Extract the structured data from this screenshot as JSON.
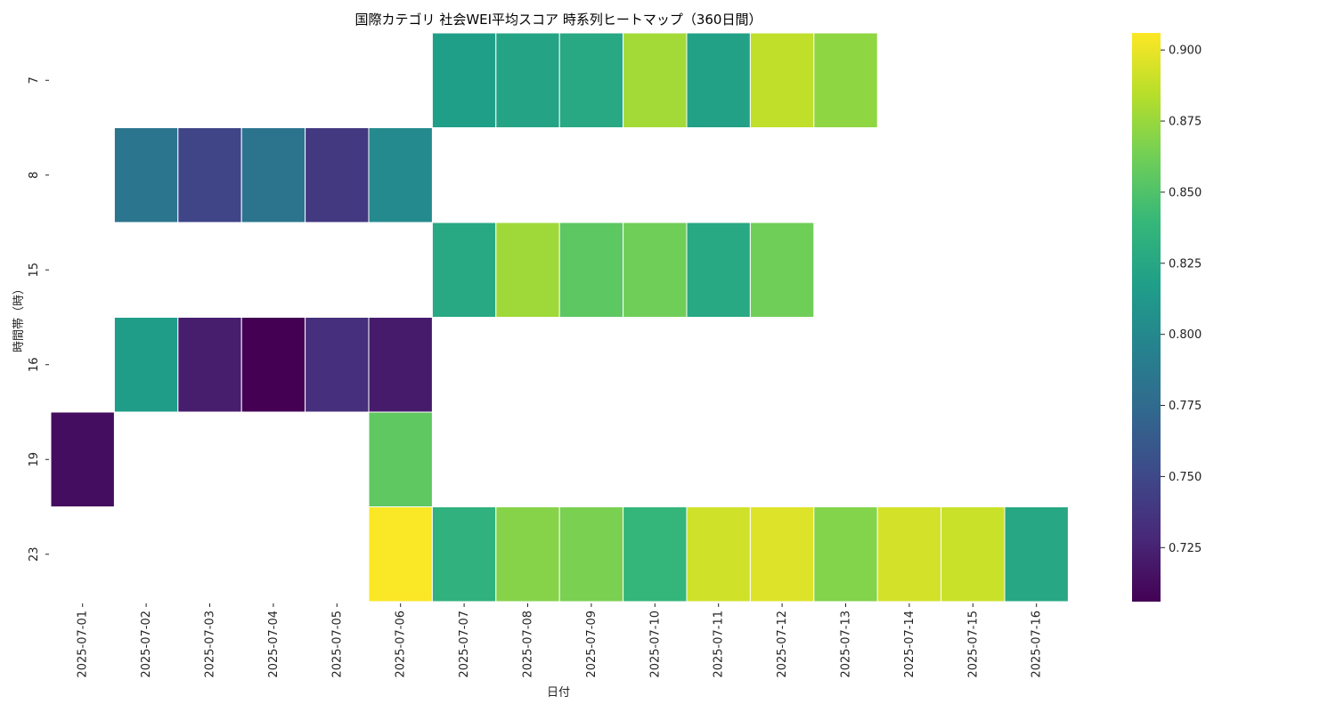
{
  "chart_data": {
    "type": "heatmap",
    "title": "国際カテゴリ 社会WEI平均スコア 時系列ヒートマップ（360日間）",
    "xlabel": "日付",
    "ylabel": "時間帯（時）",
    "x": [
      "2025-07-01",
      "2025-07-02",
      "2025-07-03",
      "2025-07-04",
      "2025-07-05",
      "2025-07-06",
      "2025-07-07",
      "2025-07-08",
      "2025-07-09",
      "2025-07-10",
      "2025-07-11",
      "2025-07-12",
      "2025-07-13",
      "2025-07-14",
      "2025-07-15",
      "2025-07-16"
    ],
    "y": [
      "7",
      "8",
      "15",
      "16",
      "19",
      "23"
    ],
    "values": [
      [
        null,
        null,
        null,
        null,
        null,
        null,
        0.818,
        0.822,
        0.826,
        0.878,
        0.82,
        0.887,
        0.872,
        null,
        null,
        null
      ],
      [
        null,
        0.784,
        0.748,
        0.783,
        0.74,
        0.801,
        null,
        null,
        null,
        null,
        null,
        null,
        null,
        null,
        null,
        null
      ],
      [
        null,
        null,
        null,
        null,
        null,
        null,
        0.826,
        0.877,
        0.855,
        0.862,
        0.826,
        0.862,
        null,
        null,
        null,
        null
      ],
      [
        null,
        0.816,
        0.722,
        0.705,
        0.733,
        0.721,
        null,
        null,
        null,
        null,
        null,
        null,
        null,
        null,
        null,
        null
      ],
      [
        0.713,
        null,
        null,
        null,
        null,
        0.856,
        null,
        null,
        null,
        null,
        null,
        null,
        null,
        null,
        null,
        null
      ],
      [
        null,
        null,
        null,
        null,
        null,
        0.905,
        0.834,
        0.869,
        0.865,
        0.838,
        0.892,
        0.896,
        0.868,
        0.893,
        0.89,
        0.825
      ]
    ],
    "colorbar": {
      "colormap": "viridis",
      "vmin": 0.706,
      "vmax": 0.906,
      "ticks": [
        "0.725",
        "0.750",
        "0.775",
        "0.800",
        "0.825",
        "0.850",
        "0.875",
        "0.900"
      ]
    }
  }
}
